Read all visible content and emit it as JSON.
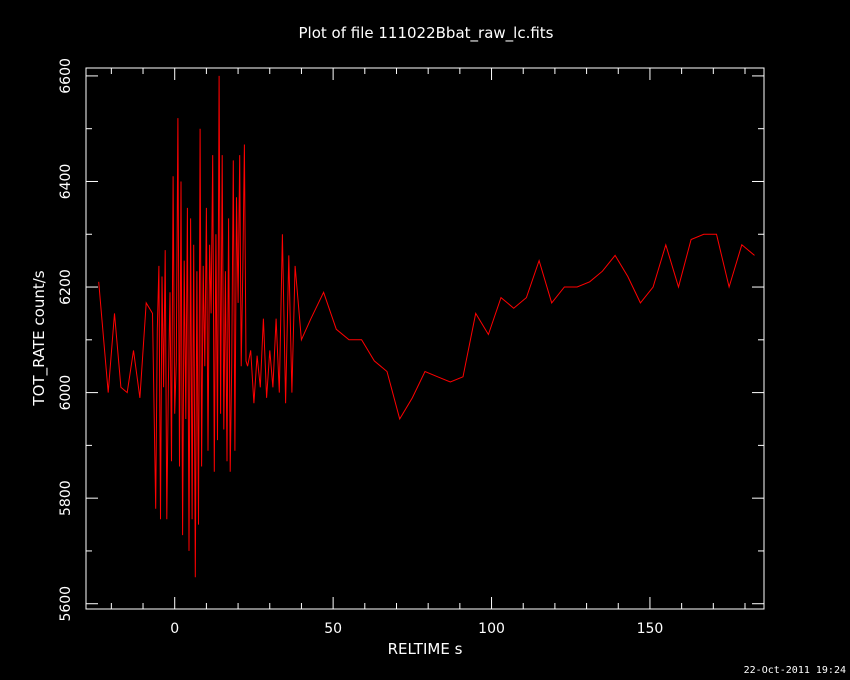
{
  "chart_data": {
    "type": "line",
    "title": "Plot of file 111022Bbat_raw_lc.fits",
    "xlabel": "RELTIME   s",
    "ylabel": "TOT_RATE   count/s",
    "xlim": [
      -28,
      186
    ],
    "ylim": [
      5590,
      6615
    ],
    "x_ticks": [
      0,
      50,
      100,
      150
    ],
    "x_tick_labels": [
      "0",
      "50",
      "100",
      "150"
    ],
    "y_ticks": [
      5600,
      5800,
      6000,
      6200,
      6400,
      6600
    ],
    "y_tick_labels": [
      "5600",
      "5800",
      "6000",
      "6200",
      "6400",
      "6600"
    ],
    "grid": false,
    "series": [
      {
        "color": "#ff0000",
        "x": [
          -24,
          -21,
          -19,
          -17,
          -15,
          -13,
          -11,
          -9,
          -7,
          -6,
          -5.5,
          -5,
          -4.5,
          -4,
          -3.5,
          -3,
          -2.5,
          -2,
          -1.5,
          -1,
          -0.5,
          0,
          0.5,
          1,
          1.5,
          2,
          2.5,
          3,
          3.5,
          4,
          4.5,
          5,
          5.5,
          6,
          6.5,
          7,
          7.5,
          8,
          8.5,
          9,
          9.5,
          10,
          10.5,
          11,
          11.5,
          12,
          12.5,
          13,
          13.5,
          14,
          14.5,
          15,
          15.5,
          16,
          16.5,
          17,
          17.5,
          18,
          18.5,
          19,
          19.5,
          20,
          20.5,
          21,
          21.5,
          22,
          22.5,
          23,
          24,
          25,
          26,
          27,
          28,
          29,
          30,
          31,
          32,
          33,
          34,
          35,
          36,
          37,
          38,
          40,
          43,
          47,
          51,
          55,
          59,
          63,
          67,
          71,
          75,
          79,
          83,
          87,
          91,
          95,
          99,
          103,
          107,
          111,
          115,
          119,
          123,
          127,
          131,
          135,
          139,
          143,
          147,
          151,
          155,
          159,
          163,
          167,
          171,
          175,
          179,
          183
        ],
        "y": [
          6210,
          6000,
          6150,
          6010,
          6000,
          6080,
          5990,
          6170,
          6150,
          5780,
          6120,
          6240,
          5760,
          6220,
          6010,
          6270,
          5760,
          6020,
          6190,
          5870,
          6410,
          5960,
          6060,
          6520,
          5860,
          6400,
          5730,
          6250,
          5950,
          6350,
          5700,
          6330,
          5760,
          6280,
          5650,
          6230,
          5750,
          6500,
          5860,
          6240,
          6050,
          6350,
          5890,
          6280,
          6150,
          6450,
          5850,
          6300,
          5910,
          6600,
          5960,
          6450,
          5930,
          6230,
          5870,
          6330,
          5850,
          6050,
          6440,
          5890,
          6370,
          6170,
          6450,
          6050,
          6230,
          6470,
          6060,
          6050,
          6080,
          5980,
          6070,
          6010,
          6140,
          5990,
          6080,
          6010,
          6140,
          6000,
          6300,
          5980,
          6260,
          6000,
          6240,
          6100,
          6140,
          6190,
          6120,
          6100,
          6100,
          6060,
          6040,
          5950,
          5990,
          6040,
          6030,
          6020,
          6030,
          6150,
          6110,
          6180,
          6160,
          6180,
          6250,
          6170,
          6200,
          6200,
          6210,
          6230,
          6260,
          6220,
          6170,
          6200,
          6280,
          6200,
          6290,
          6300,
          6300,
          6200,
          6280,
          6260
        ]
      }
    ]
  },
  "footer": {
    "timestamp": "22-Oct-2011 19:24"
  }
}
